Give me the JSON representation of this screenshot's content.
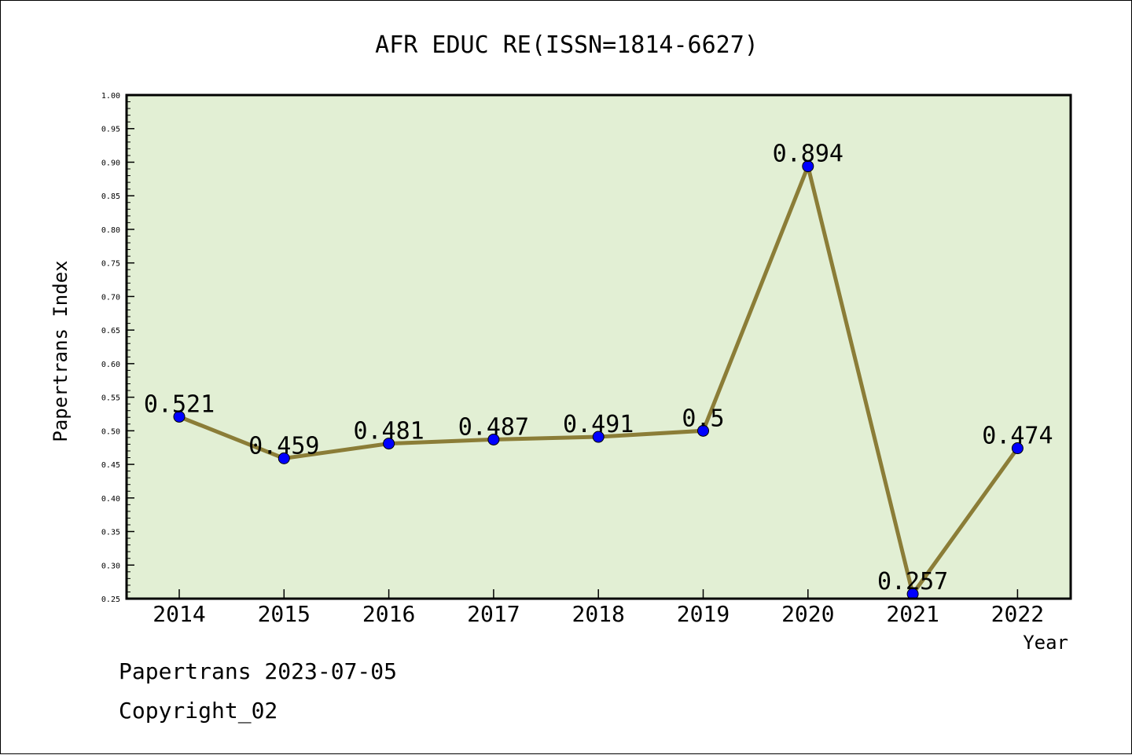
{
  "chart_data": {
    "type": "line",
    "title": "AFR EDUC RE(ISSN=1814-6627)",
    "xlabel": "Year",
    "ylabel": "Papertrans Index",
    "categories": [
      "2014",
      "2015",
      "2016",
      "2017",
      "2018",
      "2019",
      "2020",
      "2021",
      "2022"
    ],
    "values": [
      0.521,
      0.459,
      0.481,
      0.487,
      0.491,
      0.5,
      0.894,
      0.257,
      0.474
    ],
    "data_labels": [
      "0.521",
      "0.459",
      "0.481",
      "0.487",
      "0.491",
      "0.5",
      "0.894",
      "0.257",
      "0.474"
    ],
    "ylim": [
      0.25,
      1.0
    ],
    "yticks": [
      "0.25",
      "0.30",
      "0.35",
      "0.40",
      "0.45",
      "0.50",
      "0.55",
      "0.60",
      "0.65",
      "0.70",
      "0.75",
      "0.80",
      "0.85",
      "0.90",
      "0.95",
      "1.00"
    ],
    "grid": false,
    "colors": {
      "plot_background": "#e2efd4",
      "line": "#8b7d37",
      "marker": "#0000ff"
    }
  },
  "footer": {
    "line1": "Papertrans 2023-07-05",
    "line2": "Copyright_02"
  }
}
